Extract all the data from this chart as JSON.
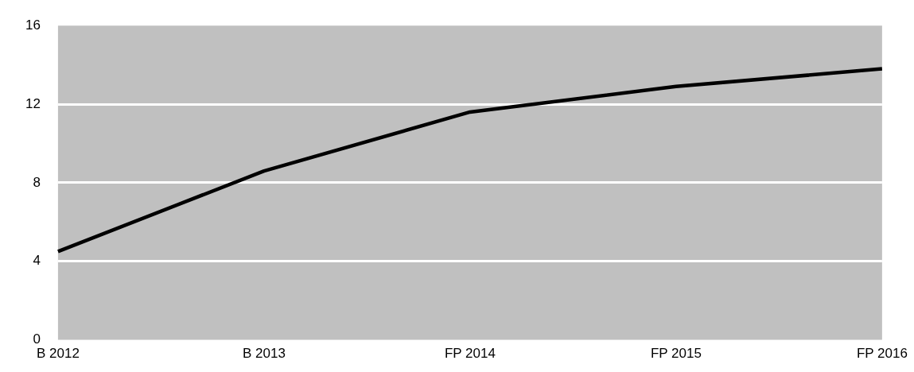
{
  "chart_data": {
    "type": "line",
    "categories": [
      "B 2012",
      "B 2013",
      "FP 2014",
      "FP 2015",
      "FP 2016"
    ],
    "series": [
      {
        "color": "#000000",
        "values": [
          4.5,
          8.6,
          11.6,
          12.9,
          13.8
        ]
      }
    ],
    "ylim": [
      0,
      16
    ],
    "yticks": [
      0,
      4,
      8,
      12,
      16
    ],
    "grid": "y",
    "legend": false,
    "marker": "none",
    "line_style": "solid"
  }
}
